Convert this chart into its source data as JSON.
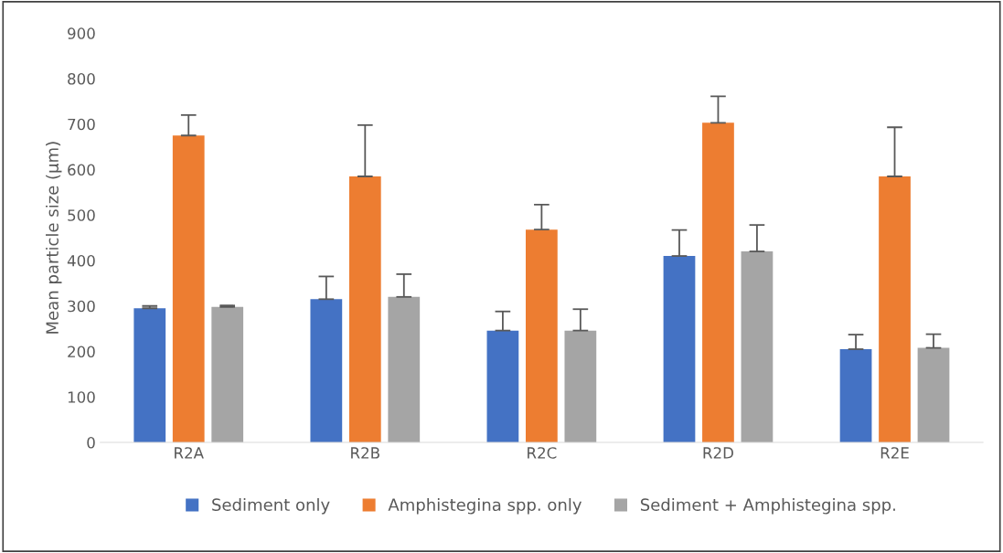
{
  "chart_data": {
    "type": "bar",
    "ylabel": "Mean particle size (μm)",
    "categories": [
      "R2A",
      "R2B",
      "R2C",
      "R2D",
      "R2E"
    ],
    "series": [
      {
        "name": "Sediment only",
        "color": "#4472c4",
        "values": [
          295,
          315,
          246,
          410,
          205
        ],
        "errors": [
          [
            295,
            300
          ],
          [
            315,
            365
          ],
          [
            246,
            288
          ],
          [
            410,
            467
          ],
          [
            205,
            237
          ]
        ]
      },
      {
        "name": "Amphistegina spp. only",
        "color": "#ed7d31",
        "values": [
          675,
          585,
          468,
          703,
          585
        ],
        "errors": [
          [
            675,
            720
          ],
          [
            585,
            698
          ],
          [
            468,
            523
          ],
          [
            703,
            761
          ],
          [
            585,
            693
          ]
        ]
      },
      {
        "name": "Sediment + Amphistegina spp.",
        "color": "#a5a5a5",
        "values": [
          298,
          320,
          246,
          420,
          208
        ],
        "errors": [
          [
            298,
            301
          ],
          [
            320,
            370
          ],
          [
            246,
            293
          ],
          [
            420,
            478
          ],
          [
            208,
            238
          ]
        ]
      }
    ],
    "ylim": [
      0,
      900
    ],
    "yticks": [
      0,
      100,
      200,
      300,
      400,
      500,
      600,
      700,
      800,
      900
    ],
    "grid": false,
    "legend": "bottom"
  }
}
